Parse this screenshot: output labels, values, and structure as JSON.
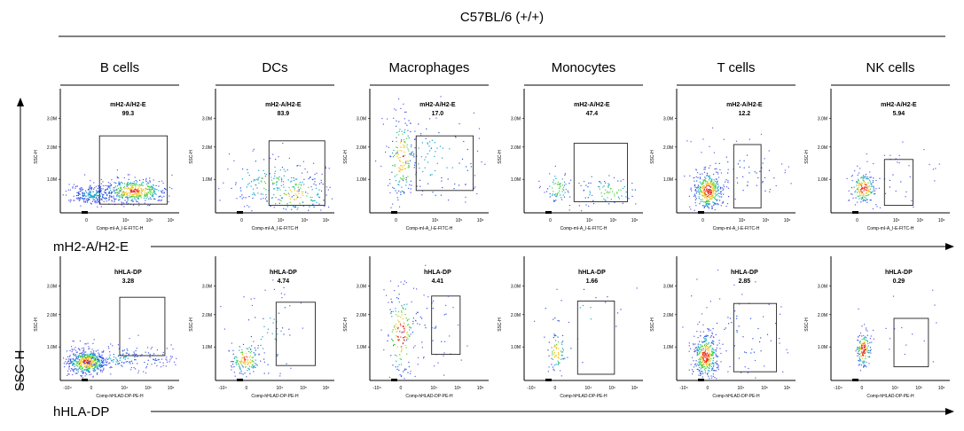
{
  "chart_data": {
    "type": "scatter",
    "title": "C57BL/6 (+/+)",
    "columns": [
      "B cells",
      "DCs",
      "Macrophages",
      "Monocytes",
      "T cells",
      "NK cells"
    ],
    "y_axis_label": "SSC-H",
    "rows": [
      {
        "row_label": "mH2-A/H2-E",
        "marker": "mH2-A/H2-E",
        "plot_xlabel": "Comp-mI-A_I-E-FITC-H",
        "plot_ylabel": "SSC-H",
        "x_ticks": [
          "0",
          "10⁴",
          "10⁵",
          "10⁶"
        ],
        "y_ticks": [
          "3.0M",
          "2.0M",
          "1.0M"
        ],
        "gate_percent": [
          "99.3",
          "83.9",
          "17.0",
          "47.4",
          "12.2",
          "5.94"
        ]
      },
      {
        "row_label": "hHLA-DP",
        "marker": "hHLA-DP",
        "plot_xlabel": "Comp-hHLAD-DP-PE-H",
        "plot_ylabel": "SSC-H",
        "x_ticks": [
          "-10⁴",
          "0",
          "10⁴",
          "10⁵",
          "10⁶"
        ],
        "y_ticks": [
          "3.0M",
          "2.0M",
          "1.0M"
        ],
        "gate_percent": [
          "3.28",
          "4.74",
          "4.41",
          "1.66",
          "2.85",
          "0.29"
        ]
      }
    ]
  }
}
